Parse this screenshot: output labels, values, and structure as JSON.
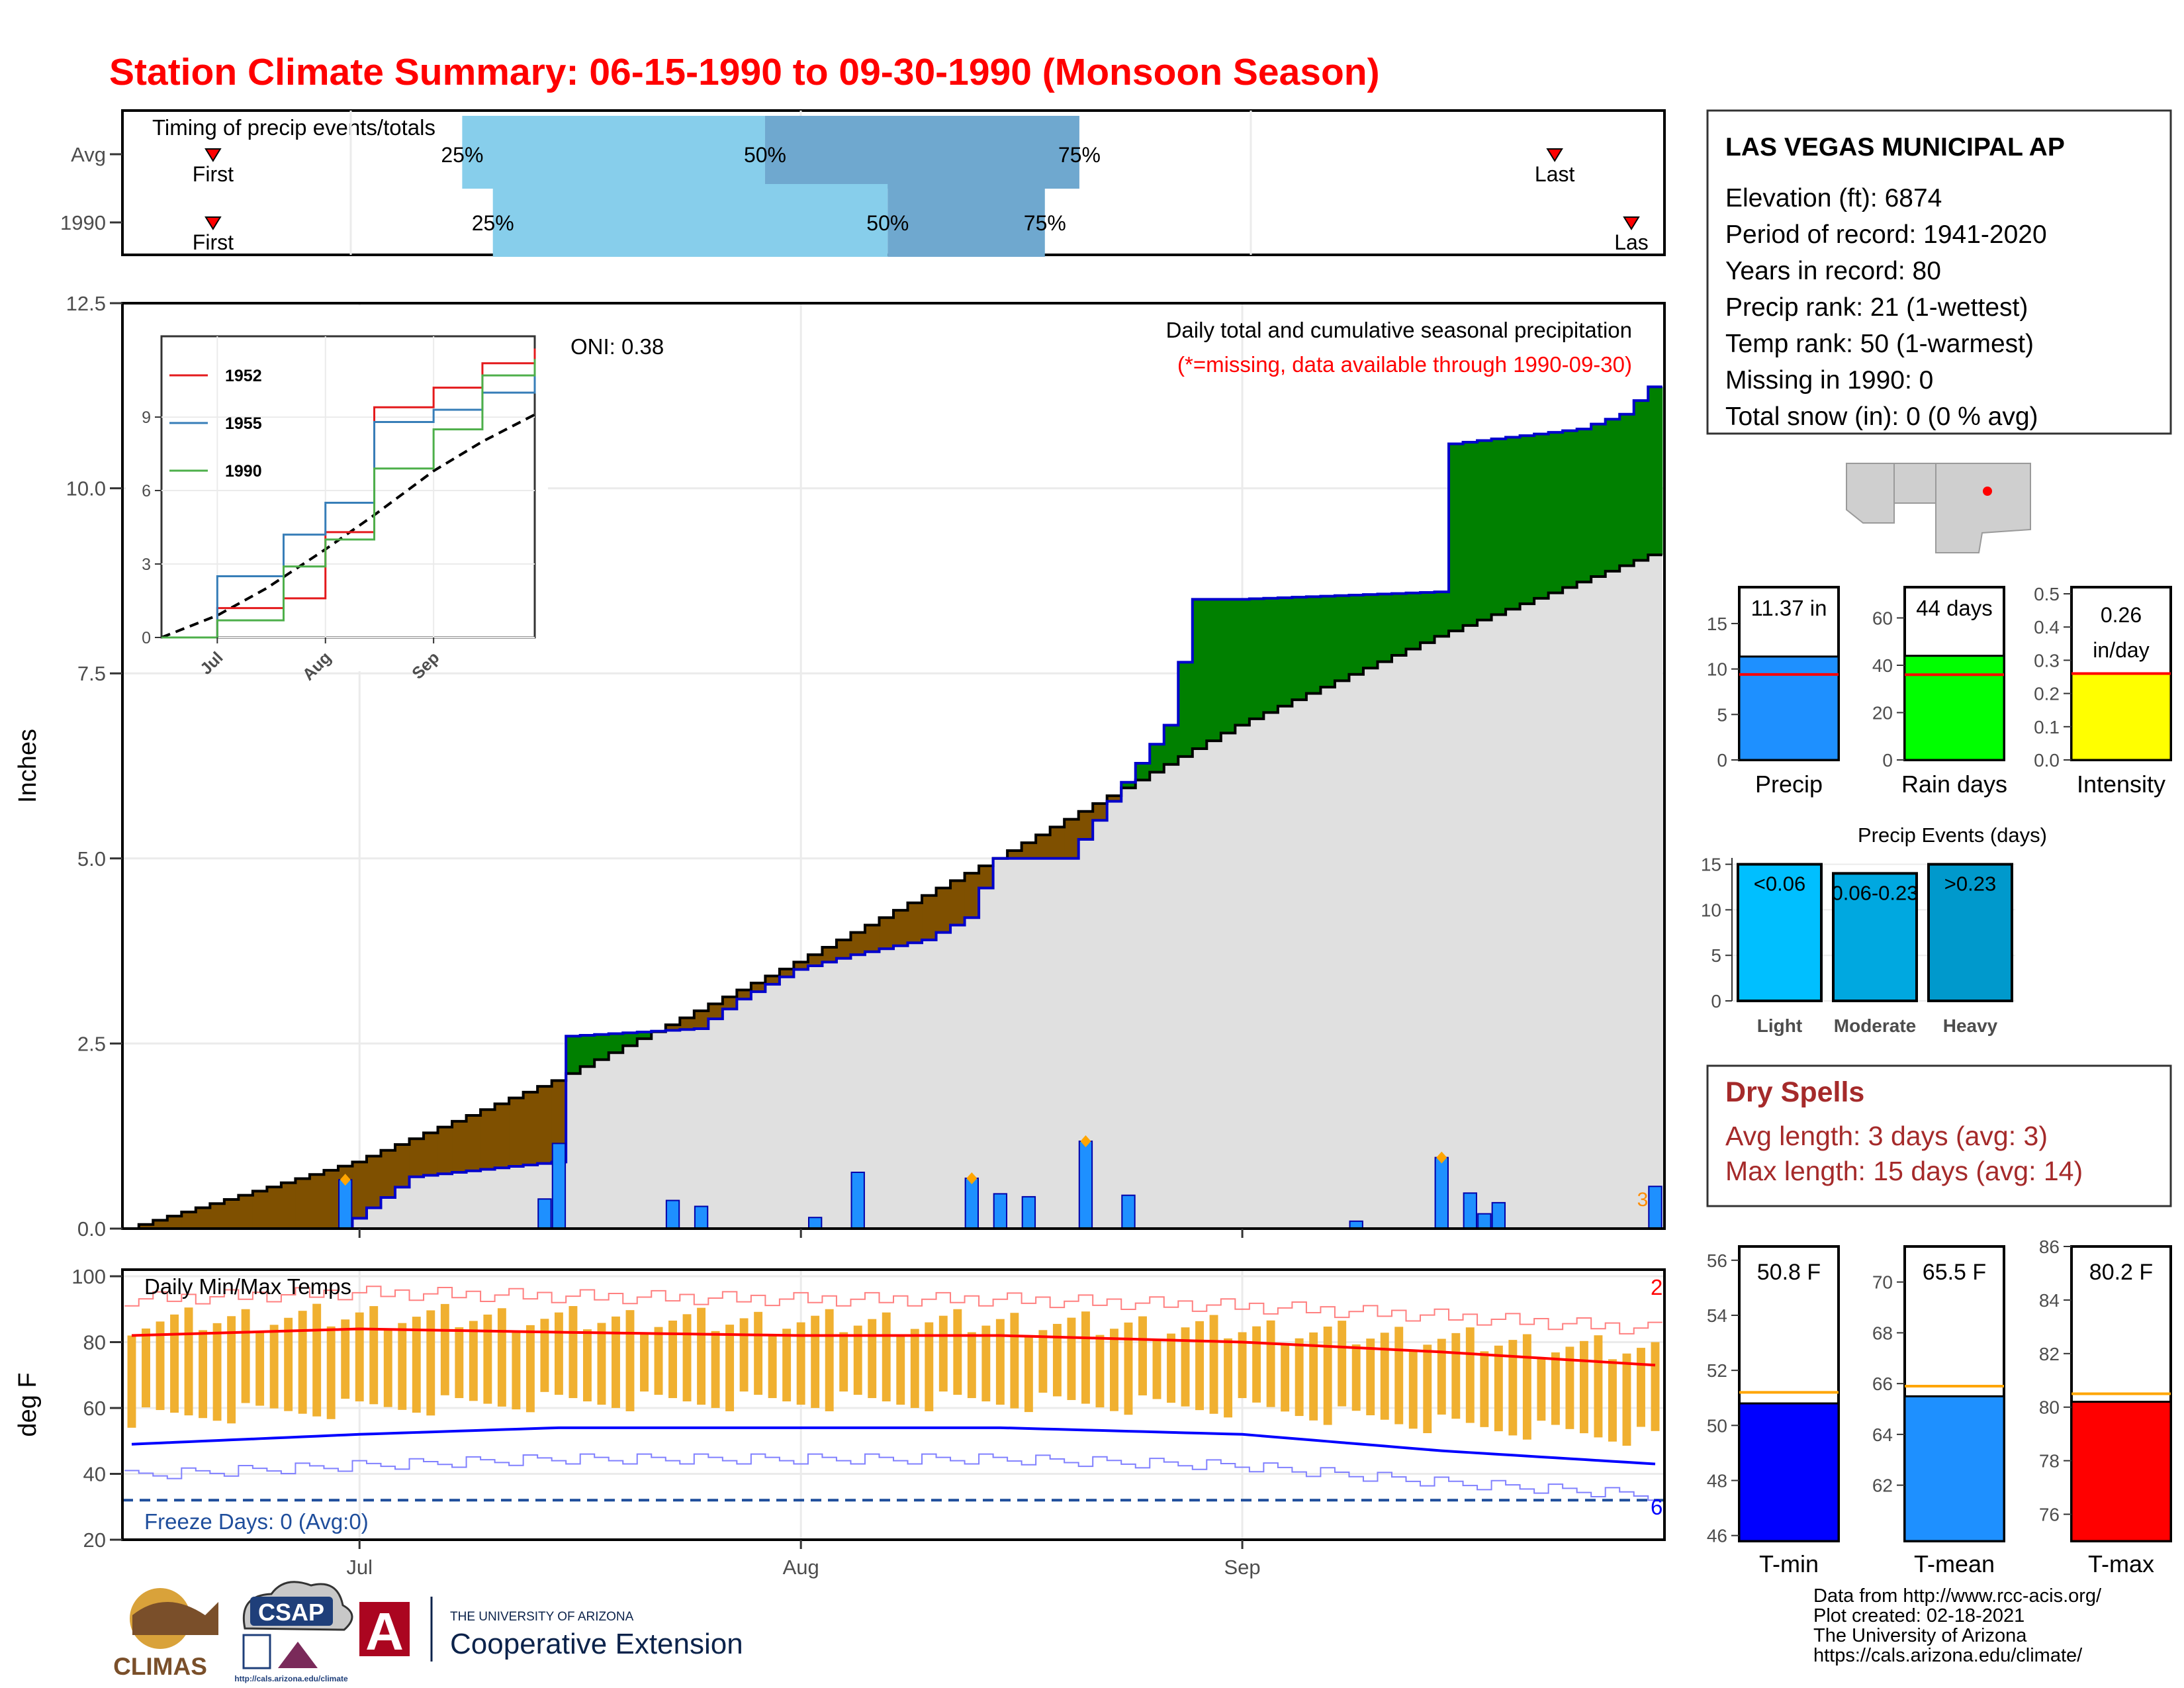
{
  "title": "Station Climate Summary: 06-15-1990 to 09-30-1990 (Monsoon Season)",
  "colors": {
    "title": "#ff0000",
    "precip_above": "#008000",
    "precip_below": "#7f5000",
    "normal_fill": "#e0e0e0",
    "daily_bar": "#1e90ff",
    "tmax": "#ff0000",
    "tmin": "#0000ff",
    "temp_bar": "#f0b030",
    "dry_spell": "#a52a2a",
    "q_light": "#87ceeb",
    "q_dark": "#6fa8cf"
  },
  "timing": {
    "label": "Timing of precip events/totals",
    "rows": [
      {
        "name": "Avg",
        "first_day": 15,
        "last_day": 365,
        "q25": 80,
        "q50": 159,
        "q75": 241,
        "q25_label": "25%",
        "q50_label": "50%",
        "q75_label": "75%",
        "first_label": "First",
        "last_label": "Last"
      },
      {
        "name": "1990",
        "first_day": 15,
        "last_day": 385,
        "q25": 88,
        "q50": 191,
        "q75": 232,
        "q25_label": "25%",
        "q50_label": "50%",
        "q75_label": "75%",
        "first_label": "First",
        "last_label": "Las"
      }
    ]
  },
  "precip": {
    "ylabel": "Inches",
    "yticks": [
      "12.5",
      "10.0",
      "7.5",
      "5.0",
      "2.5",
      "0.0"
    ],
    "xticks": [
      "Jul",
      "Aug",
      "Sep"
    ],
    "oni": "ONI: 0.38",
    "legend_title": "Daily total and cumulative seasonal precipitation",
    "legend_note": "(*=missing, data available through 1990-09-30)",
    "missing_marker": "3"
  },
  "inset": {
    "yticks": [
      "9",
      "6",
      "3",
      "0"
    ],
    "xticks": [
      "Jul",
      "Aug",
      "Sep"
    ],
    "legend": [
      {
        "name": "1952",
        "color": "#e41a1c"
      },
      {
        "name": "1955",
        "color": "#377eb8"
      },
      {
        "name": "1990",
        "color": "#4daf4a"
      }
    ]
  },
  "temps": {
    "ylabel": "deg F",
    "label": "Daily Min/Max Temps",
    "yticks": [
      "100",
      "80",
      "60",
      "40",
      "20"
    ],
    "freeze": "Freeze Days: 0 (Avg:0)",
    "hi_count": "2",
    "lo_count": "6"
  },
  "station": {
    "name": "LAS VEGAS MUNICIPAL AP",
    "lines": [
      "Elevation (ft): 6874",
      "Period of record: 1941-2020",
      "Years in record: 80",
      "Precip rank: 21 (1-wettest)",
      "Temp rank: 50 (1-warmest)",
      "Missing in 1990: 0",
      "Total snow (in): 0 (0 % avg)"
    ]
  },
  "gauges": [
    {
      "label": "Precip",
      "value_text": "11.37 in",
      "value": 11.37,
      "avg": 9.4,
      "ymax": 19,
      "yticks": [
        "15",
        "10",
        "5",
        "0"
      ],
      "color": "#1e90ff"
    },
    {
      "label": "Rain days",
      "value_text": "44 days",
      "value": 44,
      "avg": 36,
      "ymax": 73,
      "yticks": [
        "60",
        "40",
        "20",
        "0"
      ],
      "color": "#00ff00"
    },
    {
      "label": "Intensity",
      "value_text": "0.26 in/day",
      "value": 0.26,
      "avg": 0.26,
      "ymax": 0.52,
      "yticks": [
        "0.5",
        "0.4",
        "0.3",
        "0.2",
        "0.1",
        "0.0"
      ],
      "color": "#ffff00"
    }
  ],
  "events": {
    "title": "Precip Events (days)",
    "yticks": [
      "15",
      "10",
      "5",
      "0"
    ],
    "bars": [
      {
        "cat": "Light",
        "label": "<0.06",
        "value": 15,
        "color": "#00bfff"
      },
      {
        "cat": "Moderate",
        "label": "0.06-0.23",
        "value": 14,
        "color": "#00a8e0"
      },
      {
        "cat": "Heavy",
        "label": ">0.23",
        "value": 15,
        "color": "#0099cc"
      }
    ]
  },
  "dry_spells": {
    "title": "Dry Spells",
    "avg": "Avg length: 3 days (avg: 3)",
    "max": "Max length: 15 days (avg: 14)"
  },
  "temp_gauges": [
    {
      "label": "T-min",
      "value_text": "50.8 F",
      "value": 50.8,
      "avg": 51.2,
      "ymin": 45.8,
      "ymax": 56.5,
      "yticks": [
        "56",
        "54",
        "52",
        "50",
        "48",
        "46"
      ],
      "color": "#0000ff"
    },
    {
      "label": "T-mean",
      "value_text": "65.5 F",
      "value": 65.5,
      "avg": 65.9,
      "ymin": 59.8,
      "ymax": 71.4,
      "yticks": [
        "70",
        "68",
        "66",
        "64",
        "62"
      ],
      "color": "#1e90ff"
    },
    {
      "label": "T-max",
      "value_text": "80.2 F",
      "value": 80.2,
      "avg": 80.5,
      "ymin": 75.0,
      "ymax": 86.0,
      "yticks": [
        "86",
        "84",
        "82",
        "80",
        "78",
        "76"
      ],
      "color": "#ff0000"
    }
  ],
  "footer": {
    "lines": [
      "Data from http://www.rcc-acis.org/",
      "Plot created: 02-18-2021",
      "The University of Arizona",
      "https://cals.arizona.edu/climate/"
    ],
    "logos": {
      "climas": "CLIMAS",
      "csap": "CSAP",
      "csap_url": "http://cals.arizona.edu/climate",
      "ua_line1": "THE UNIVERSITY OF ARIZONA",
      "ua_line2": "Cooperative Extension"
    }
  },
  "chart_data": [
    {
      "type": "area",
      "title": "Daily total and cumulative seasonal precipitation",
      "ylabel": "Inches",
      "xlabel": "",
      "ylim": [
        0,
        12.5
      ],
      "series": [
        {
          "name": "1990",
          "x": [
            "06-15",
            "06-30",
            "07-05",
            "07-15",
            "07-16",
            "07-25",
            "07-28",
            "08-01",
            "08-05",
            "08-10",
            "08-13",
            "08-15",
            "08-20",
            "08-27",
            "08-29",
            "09-01",
            "09-15",
            "09-16",
            "09-25",
            "09-28",
            "09-30"
          ],
          "values": [
            0,
            0,
            0.7,
            0.9,
            2.6,
            2.7,
            3.1,
            3.5,
            3.7,
            3.9,
            4.2,
            5.0,
            5.0,
            6.8,
            8.5,
            8.5,
            8.6,
            10.6,
            10.8,
            11.0,
            11.37
          ]
        },
        {
          "name": "Normal",
          "x": [
            "06-15",
            "07-01",
            "07-15",
            "08-01",
            "08-15",
            "09-01",
            "09-15",
            "09-30"
          ],
          "values": [
            0,
            0.9,
            2.0,
            3.6,
            5.0,
            6.8,
            8.0,
            9.1
          ]
        }
      ],
      "daily_bars": [
        {
          "x": "06-30",
          "value": 0.66
        },
        {
          "x": "07-14",
          "value": 0.4
        },
        {
          "x": "07-15",
          "value": 1.15
        },
        {
          "x": "07-23",
          "value": 0.38
        },
        {
          "x": "07-25",
          "value": 0.3
        },
        {
          "x": "08-02",
          "value": 0.15
        },
        {
          "x": "08-05",
          "value": 0.76
        },
        {
          "x": "08-13",
          "value": 0.68
        },
        {
          "x": "08-15",
          "value": 0.47
        },
        {
          "x": "08-17",
          "value": 0.43
        },
        {
          "x": "08-21",
          "value": 1.18
        },
        {
          "x": "08-24",
          "value": 0.45
        },
        {
          "x": "09-09",
          "value": 0.1
        },
        {
          "x": "09-15",
          "value": 0.96
        },
        {
          "x": "09-17",
          "value": 0.48
        },
        {
          "x": "09-18",
          "value": 0.2
        },
        {
          "x": "09-19",
          "value": 0.35
        },
        {
          "x": "09-30",
          "value": 0.57
        }
      ]
    },
    {
      "type": "line",
      "title": "",
      "ylim": [
        0,
        12
      ],
      "series": [
        {
          "name": "1952",
          "x": [
            "06-15",
            "07-01",
            "07-20",
            "08-01",
            "08-15",
            "09-01",
            "09-15",
            "09-30"
          ],
          "values": [
            0,
            1.2,
            1.6,
            4.3,
            9.4,
            10.2,
            11.2,
            11.8
          ]
        },
        {
          "name": "1955",
          "x": [
            "06-15",
            "07-01",
            "07-20",
            "08-01",
            "08-15",
            "09-01",
            "09-15",
            "09-30"
          ],
          "values": [
            0,
            2.5,
            4.2,
            5.5,
            8.8,
            9.3,
            10.0,
            11.1
          ]
        },
        {
          "name": "1990",
          "x": [
            "06-15",
            "07-01",
            "07-20",
            "08-01",
            "08-15",
            "09-01",
            "09-15",
            "09-30"
          ],
          "values": [
            0,
            0.7,
            2.9,
            4.0,
            6.9,
            8.5,
            10.7,
            11.37
          ]
        }
      ]
    },
    {
      "type": "line",
      "title": "Daily Min/Max Temps",
      "ylabel": "deg F",
      "ylim": [
        20,
        100
      ],
      "series": [
        {
          "name": "Normal max",
          "x": [
            "06-15",
            "07-01",
            "07-15",
            "08-01",
            "08-15",
            "09-01",
            "09-15",
            "09-30"
          ],
          "values": [
            82,
            84,
            83,
            82,
            82,
            80,
            77,
            73
          ]
        },
        {
          "name": "Normal min",
          "x": [
            "06-15",
            "07-01",
            "07-15",
            "08-01",
            "08-15",
            "09-01",
            "09-15",
            "09-30"
          ],
          "values": [
            49,
            52,
            54,
            54,
            54,
            52,
            47,
            43
          ]
        }
      ]
    }
  ]
}
